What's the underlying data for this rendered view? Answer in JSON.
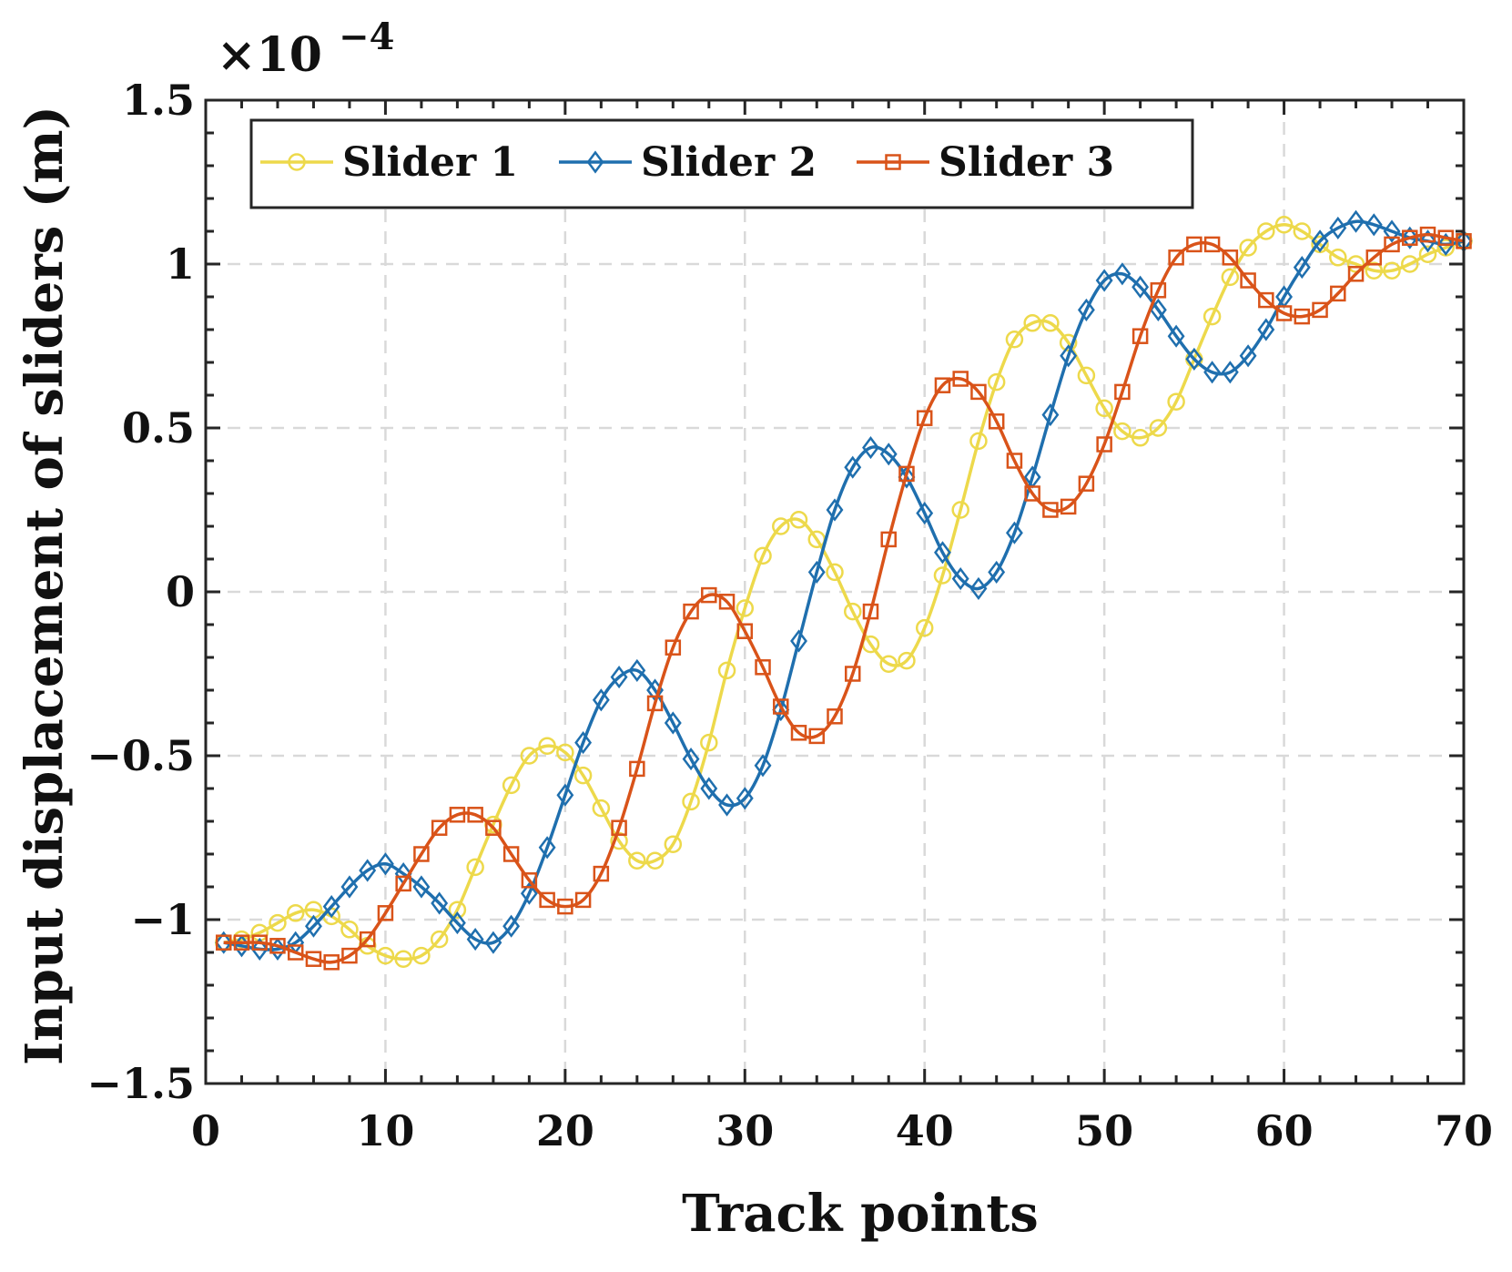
{
  "chart_data": {
    "type": "line",
    "title": "",
    "xlabel": "Track points",
    "ylabel": "Input displacement of sliders (m)",
    "exponent_label": "×10",
    "exponent_power": "−4",
    "xlim": [
      0,
      70
    ],
    "ylim": [
      -1.5,
      1.5
    ],
    "xticks": [
      0,
      10,
      20,
      30,
      40,
      50,
      60,
      70
    ],
    "xtick_labels": [
      "0",
      "10",
      "20",
      "30",
      "40",
      "50",
      "60",
      "70"
    ],
    "yticks": [
      -1.5,
      -1,
      -0.5,
      0,
      0.5,
      1,
      1.5
    ],
    "ytick_labels": [
      "−1.5",
      "−1",
      "−0.5",
      "0",
      "0.5",
      "1",
      "1.5"
    ],
    "grid": true,
    "legend_position": "top-left",
    "x": [
      1,
      2,
      3,
      4,
      5,
      6,
      7,
      8,
      9,
      10,
      11,
      12,
      13,
      14,
      15,
      16,
      17,
      18,
      19,
      20,
      21,
      22,
      23,
      24,
      25,
      26,
      27,
      28,
      29,
      30,
      31,
      32,
      33,
      34,
      35,
      36,
      37,
      38,
      39,
      40,
      41,
      42,
      43,
      44,
      45,
      46,
      47,
      48,
      49,
      50,
      51,
      52,
      53,
      54,
      55,
      56,
      57,
      58,
      59,
      60,
      61,
      62,
      63,
      64,
      65,
      66,
      67,
      68,
      69,
      70
    ],
    "series": [
      {
        "name": "Slider 1",
        "color": "#EDD94B",
        "marker": "circle",
        "values": [
          -1.07,
          -1.06,
          -1.04,
          -1.01,
          -0.98,
          -0.97,
          -0.99,
          -1.03,
          -1.08,
          -1.11,
          -1.12,
          -1.11,
          -1.06,
          -0.97,
          -0.84,
          -0.71,
          -0.59,
          -0.5,
          -0.47,
          -0.49,
          -0.56,
          -0.66,
          -0.76,
          -0.82,
          -0.82,
          -0.77,
          -0.64,
          -0.46,
          -0.24,
          -0.05,
          0.11,
          0.2,
          0.22,
          0.16,
          0.06,
          -0.06,
          -0.16,
          -0.22,
          -0.21,
          -0.11,
          0.05,
          0.25,
          0.46,
          0.64,
          0.77,
          0.82,
          0.82,
          0.76,
          0.66,
          0.56,
          0.49,
          0.47,
          0.5,
          0.58,
          0.71,
          0.84,
          0.96,
          1.05,
          1.1,
          1.12,
          1.1,
          1.06,
          1.02,
          1.0,
          0.98,
          0.98,
          1.0,
          1.03,
          1.05,
          1.07
        ]
      },
      {
        "name": "Slider 2",
        "color": "#1F6FAE",
        "marker": "diamond",
        "values": [
          -1.07,
          -1.08,
          -1.09,
          -1.09,
          -1.07,
          -1.02,
          -0.96,
          -0.9,
          -0.85,
          -0.83,
          -0.86,
          -0.9,
          -0.95,
          -1.01,
          -1.06,
          -1.07,
          -1.02,
          -0.92,
          -0.78,
          -0.62,
          -0.46,
          -0.33,
          -0.26,
          -0.24,
          -0.3,
          -0.4,
          -0.51,
          -0.6,
          -0.65,
          -0.63,
          -0.53,
          -0.36,
          -0.15,
          0.06,
          0.25,
          0.38,
          0.44,
          0.42,
          0.35,
          0.24,
          0.12,
          0.04,
          0.01,
          0.06,
          0.18,
          0.35,
          0.54,
          0.72,
          0.86,
          0.95,
          0.97,
          0.93,
          0.86,
          0.78,
          0.71,
          0.67,
          0.67,
          0.72,
          0.8,
          0.9,
          0.99,
          1.07,
          1.11,
          1.13,
          1.12,
          1.1,
          1.08,
          1.07,
          1.06,
          1.07
        ]
      },
      {
        "name": "Slider 3",
        "color": "#D95319",
        "marker": "square",
        "values": [
          -1.07,
          -1.07,
          -1.07,
          -1.08,
          -1.1,
          -1.12,
          -1.13,
          -1.11,
          -1.06,
          -0.98,
          -0.89,
          -0.8,
          -0.72,
          -0.68,
          -0.68,
          -0.72,
          -0.8,
          -0.88,
          -0.94,
          -0.96,
          -0.94,
          -0.86,
          -0.72,
          -0.54,
          -0.34,
          -0.17,
          -0.06,
          -0.01,
          -0.03,
          -0.12,
          -0.23,
          -0.35,
          -0.43,
          -0.44,
          -0.38,
          -0.25,
          -0.06,
          0.16,
          0.36,
          0.53,
          0.63,
          0.65,
          0.61,
          0.52,
          0.4,
          0.3,
          0.25,
          0.26,
          0.33,
          0.45,
          0.61,
          0.78,
          0.92,
          1.02,
          1.06,
          1.06,
          1.02,
          0.95,
          0.89,
          0.85,
          0.84,
          0.86,
          0.91,
          0.97,
          1.02,
          1.06,
          1.08,
          1.09,
          1.08,
          1.07
        ]
      }
    ]
  }
}
